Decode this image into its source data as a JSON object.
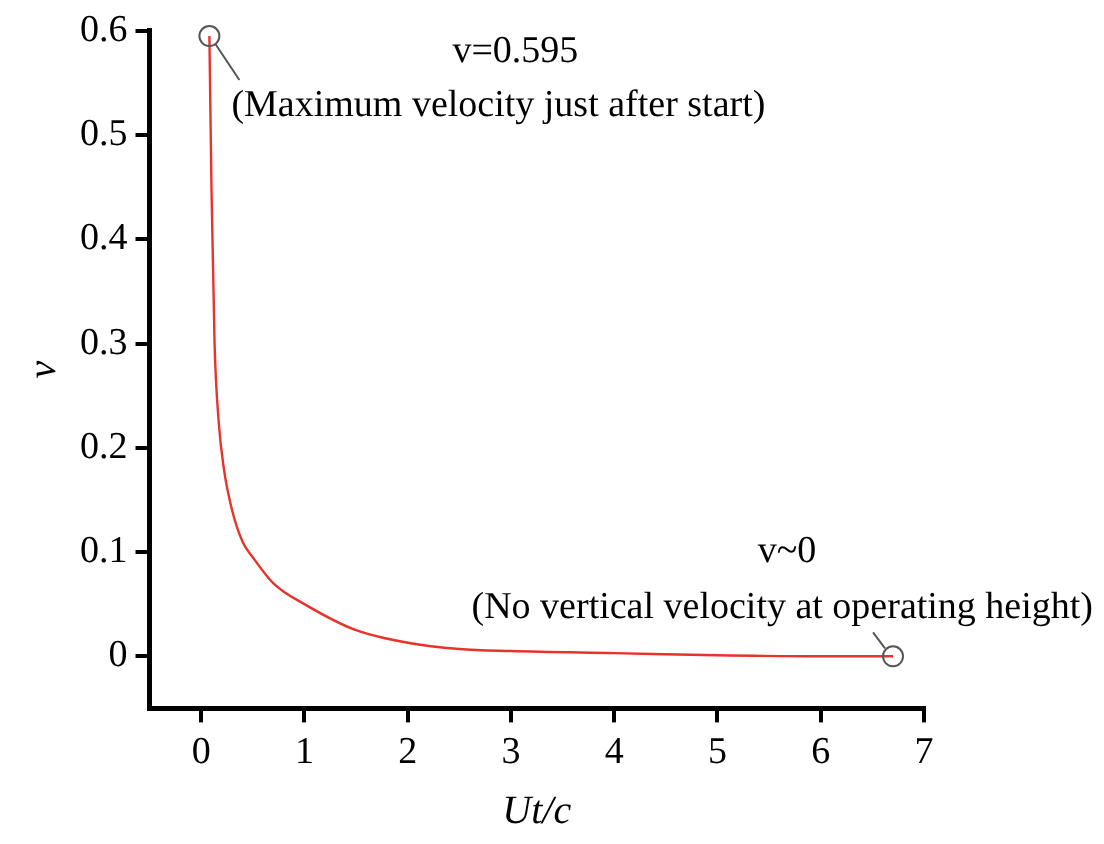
{
  "chart_data": {
    "type": "line",
    "xlabel": "Ut/c",
    "ylabel": "v",
    "x": [
      0.08,
      0.1,
      0.13,
      0.17,
      0.22,
      0.3,
      0.4,
      0.5,
      0.7,
      1,
      1.5,
      2,
      2.5,
      3,
      4,
      5,
      6,
      6.7
    ],
    "series": [
      {
        "color": "#e8322a",
        "values": [
          0.595,
          0.45,
          0.3,
          0.225,
          0.18,
          0.14,
          0.11,
          0.095,
          0.07,
          0.05,
          0.025,
          0.013,
          0.007,
          0.005,
          0.003,
          0.001,
          0,
          0
        ]
      }
    ],
    "xlim": [
      -0.5,
      7
    ],
    "xticks": [
      0,
      1,
      2,
      3,
      4,
      5,
      6,
      7
    ],
    "ylim": [
      -0.05,
      0.6
    ],
    "yticks": [
      0,
      0.1,
      0.2,
      0.3,
      0.4,
      0.5,
      0.6
    ],
    "grid": false,
    "legend": false,
    "marker": "none",
    "line_style": "solid",
    "annotations": [
      "v=0.595",
      {
        "text": "(Maximum velocity just after start)",
        "x": 0.08,
        "y": 0.595
      },
      "v~0",
      {
        "text": "(No vertical velocity at operating height)",
        "x": 6.7,
        "y": 0
      }
    ]
  }
}
